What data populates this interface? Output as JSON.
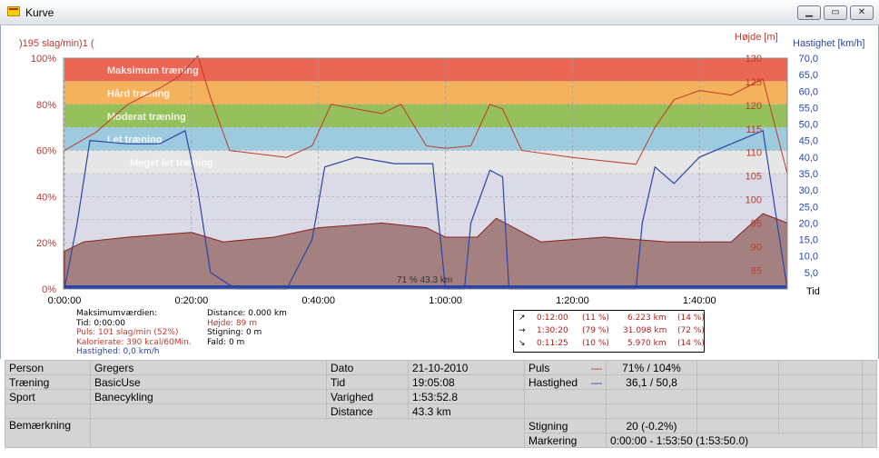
{
  "window": {
    "title": "Kurve"
  },
  "chart": {
    "left_axis_top": ")195 slag/min)1 (",
    "left_ticks": [
      "100%",
      "80%",
      "60%",
      "40%",
      "20%",
      "0%"
    ],
    "right_axis1_label": "Højde [m]",
    "right_axis1_ticks": [
      "130",
      "125",
      "120",
      "115",
      "110",
      "105",
      "100",
      "95",
      "90",
      "85"
    ],
    "right_axis2_label": "Hastighet [km/h]",
    "right_axis2_ticks": [
      "70,0",
      "65,0",
      "60,0",
      "55,0",
      "50,0",
      "45,0",
      "40,0",
      "35,0",
      "30,0",
      "25,0",
      "20,0",
      "15,0",
      "10,0",
      "5,0"
    ],
    "x_axis_label": "Tid",
    "x_ticks": [
      "0:00:00",
      "0:20:00",
      "0:40:00",
      "1:00:00",
      "1:20:00",
      "1:40:00"
    ],
    "zones": [
      "Maksimum træning",
      "Hård træning",
      "Moderat træning",
      "Let træning",
      "Meget let træning"
    ],
    "zone_colors": [
      "#ec6753",
      "#f4b25c",
      "#95c05b",
      "#9ccbe0",
      "#e6e6e6"
    ],
    "center_label": "71 % 43.3 km",
    "hr_color": "#c0392b",
    "speed_color": "#2a45a8",
    "altitude_fill": "#a58080"
  },
  "chart_data": {
    "type": "line",
    "x_range": [
      "0:00:00",
      "1:53:50"
    ],
    "series": [
      {
        "name": "Puls",
        "unit": "% of 195 slag/min",
        "x": [
          "0:00:00",
          "0:05:00",
          "0:10:00",
          "0:15:00",
          "0:18:00",
          "0:21:00",
          "0:23:00",
          "0:26:00",
          "0:35:00",
          "0:39:00",
          "0:42:00",
          "0:46:00",
          "0:50:00",
          "0:53:00",
          "0:55:00",
          "0:57:00",
          "1:00:00",
          "1:04:00",
          "1:07:00",
          "1:09:00",
          "1:12:00",
          "1:20:00",
          "1:30:00",
          "1:33:00",
          "1:36:00",
          "1:40:00",
          "1:45:00",
          "1:50:00",
          "1:53:50"
        ],
        "values": [
          60,
          68,
          80,
          87,
          92,
          101,
          83,
          60,
          57,
          62,
          80,
          78,
          76,
          80,
          71,
          62,
          61,
          62,
          80,
          78,
          60,
          57,
          54,
          70,
          82,
          86,
          84,
          91,
          50
        ]
      },
      {
        "name": "Hastighed",
        "unit": "km/h",
        "x": [
          "0:00:00",
          "0:02:00",
          "0:04:00",
          "0:10:00",
          "0:15:00",
          "0:19:00",
          "0:21:00",
          "0:23:00",
          "0:27:00",
          "0:35:00",
          "0:39:00",
          "0:41:00",
          "0:46:00",
          "0:52:00",
          "0:58:00",
          "1:00:00",
          "1:03:00",
          "1:04:00",
          "1:07:00",
          "1:09:00",
          "1:10:00",
          "1:30:00",
          "1:31:00",
          "1:33:00",
          "1:36:00",
          "1:40:00",
          "1:45:00",
          "1:50:00",
          "1:53:50"
        ],
        "values": [
          0,
          20,
          45,
          44,
          44,
          48,
          30,
          5,
          0,
          0,
          15,
          37,
          40,
          38,
          38,
          0,
          0,
          20,
          36,
          34,
          0,
          0,
          20,
          37,
          32,
          40,
          44,
          48,
          0
        ]
      },
      {
        "name": "Højde",
        "unit": "m",
        "x": [
          "0:00:00",
          "0:03:00",
          "0:10:00",
          "0:20:00",
          "0:25:00",
          "0:33:00",
          "0:40:00",
          "0:50:00",
          "0:57:00",
          "1:00:00",
          "1:05:00",
          "1:08:00",
          "1:15:00",
          "1:25:00",
          "1:35:00",
          "1:45:00",
          "1:50:00",
          "1:53:50"
        ],
        "values": [
          89,
          91,
          92,
          93,
          91,
          92,
          94,
          95,
          94,
          92,
          92,
          96,
          91,
          92,
          91,
          91,
          97,
          95
        ]
      }
    ],
    "ylim_left": [
      0,
      100
    ],
    "ylim_hoejde": [
      81,
      130
    ],
    "ylim_hastighed": [
      0,
      70
    ],
    "grid": true
  },
  "stats_left": {
    "heading": "Maksimumværdien:",
    "tid": "Tid: 0:00:00",
    "puls": "Puls: 101 slag/min (52%)",
    "kalorierate": "Kalorierate: 390 kcal/60Min.",
    "hastighed": "Hastighed: 0,0 km/h"
  },
  "stats_right": {
    "distance": "Distance: 0.000 km",
    "hoejde": "Højde: 89 m",
    "stigning": "Stigning: 0 m",
    "fald": "Fald: 0 m"
  },
  "summary": [
    {
      "arrow": "↗",
      "time": "0:12:00",
      "pct": "(11 %)",
      "dist": "6.223 km",
      "dist_pct": "(14 %)"
    },
    {
      "arrow": "→",
      "time": "1:30:20",
      "pct": "(79 %)",
      "dist": "31.098 km",
      "dist_pct": "(72 %)"
    },
    {
      "arrow": "↘",
      "time": "0:11:25",
      "pct": "(10 %)",
      "dist": "5.970 km",
      "dist_pct": "(14 %)"
    }
  ],
  "info": {
    "person_label": "Person",
    "person": "Gregers",
    "traening_label": "Træning",
    "traening": "BasicUse",
    "sport_label": "Sport",
    "sport": "Banecykling",
    "bemaerkning_label": "Bemærkning",
    "dato_label": "Dato",
    "dato": "21-10-2010",
    "tid_label": "Tid",
    "tid": "19:05:08",
    "varighed_label": "Varighed",
    "varighed": "1:53:52.8",
    "distance_label": "Distance",
    "distance": "43.3 km",
    "puls_label": "Puls",
    "puls": "71% / 104%",
    "hastighed_label": "Hastighed",
    "hastighed": "36,1 / 50,8",
    "stigning_label": "Stigning",
    "stigning": "20 (-0.2%)",
    "markering_label": "Markering",
    "markering": "0:00:00 - 1:53:50 (1:53:50.0)"
  }
}
